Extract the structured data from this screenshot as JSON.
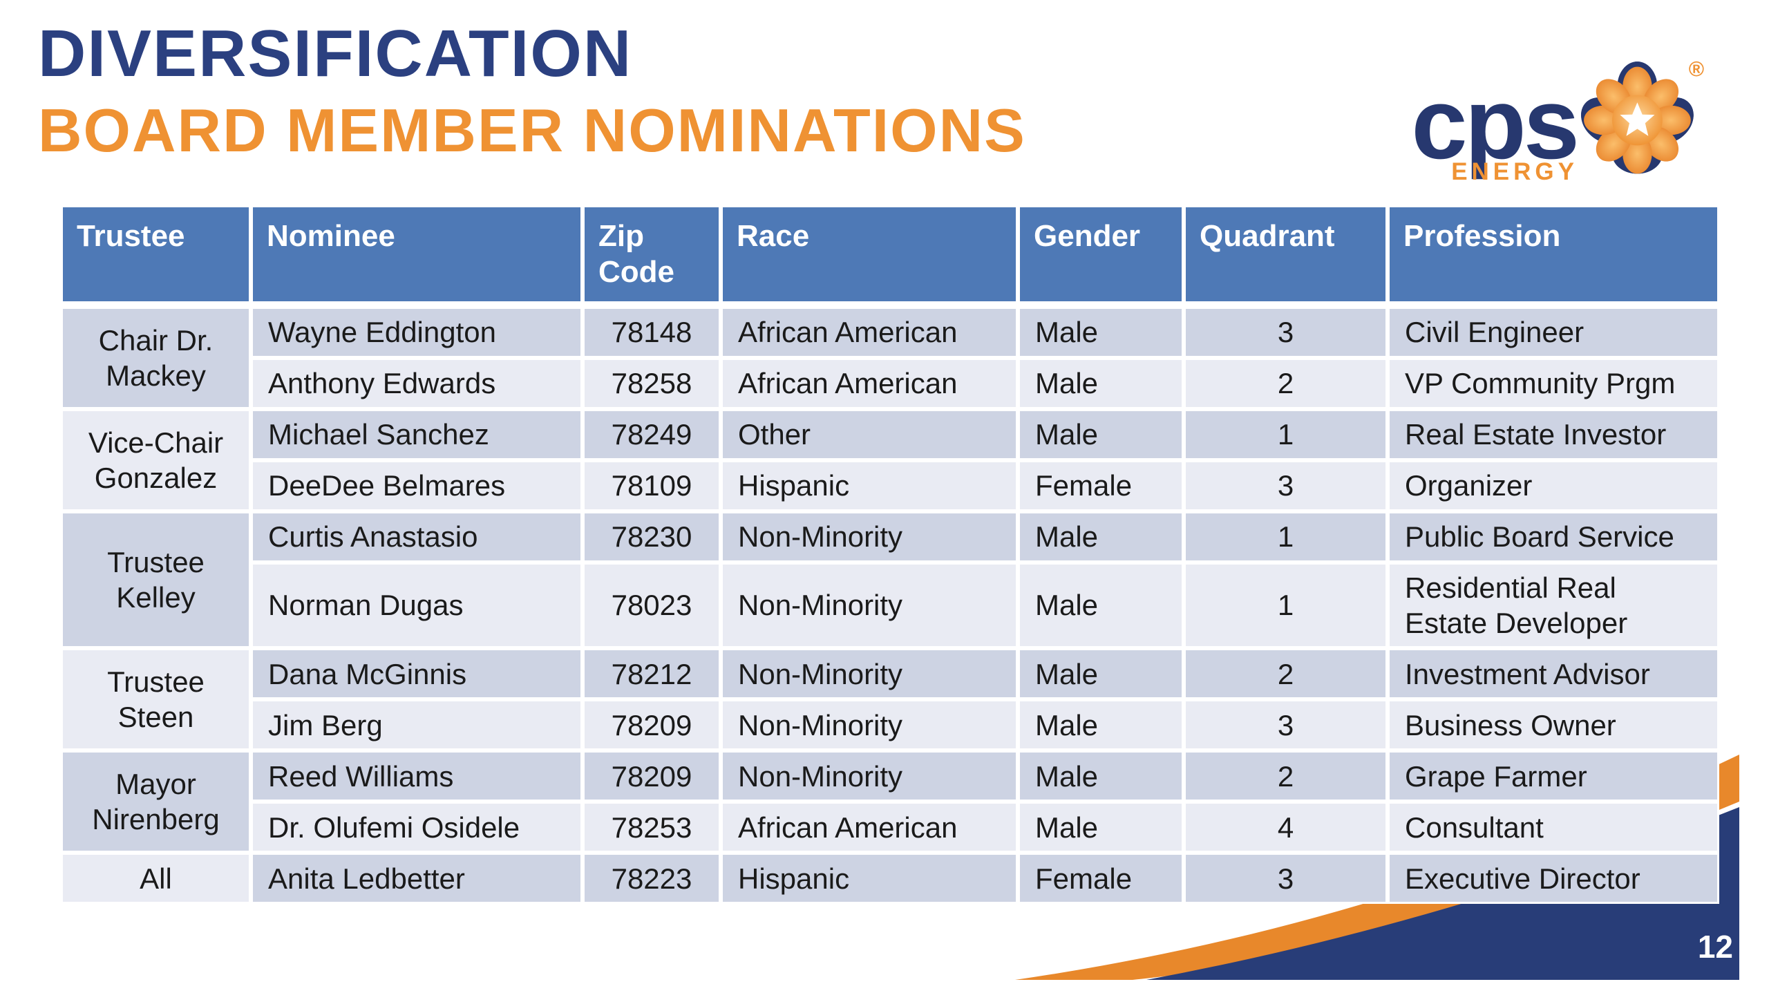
{
  "slide": {
    "title": "DIVERSIFICATION",
    "subtitle": "BOARD MEMBER NOMINATIONS",
    "page_number": "12"
  },
  "logo": {
    "brand": "cps",
    "sub_brand": "ENERGY",
    "registered_mark": "®"
  },
  "colors": {
    "navy": "#2B4080",
    "logo_navy": "#27386F",
    "orange": "#EF9233",
    "swoosh_orange": "#E8882B",
    "swoosh_navy": "#283D78",
    "header_blue": "#4E79B6",
    "row_dark": "#CDD3E3",
    "row_light": "#E9EBF3",
    "text_dark": "#1A1A1A"
  },
  "table": {
    "columns": [
      "Trustee",
      "Nominee",
      "Zip Code",
      "Race",
      "Gender",
      "Quadrant",
      "Profession"
    ],
    "groups": [
      {
        "trustee": "Chair Dr. Mackey",
        "nominees": [
          {
            "nominee": "Wayne Eddington",
            "zip": "78148",
            "race": "African American",
            "gender": "Male",
            "quadrant": "3",
            "profession": "Civil Engineer"
          },
          {
            "nominee": "Anthony Edwards",
            "zip": "78258",
            "race": "African American",
            "gender": "Male",
            "quadrant": "2",
            "profession": "VP Community Prgm"
          }
        ]
      },
      {
        "trustee": "Vice-Chair Gonzalez",
        "nominees": [
          {
            "nominee": "Michael Sanchez",
            "zip": "78249",
            "race": "Other",
            "gender": "Male",
            "quadrant": "1",
            "profession": "Real Estate Investor"
          },
          {
            "nominee": "DeeDee Belmares",
            "zip": "78109",
            "race": "Hispanic",
            "gender": "Female",
            "quadrant": "3",
            "profession": "Organizer"
          }
        ]
      },
      {
        "trustee": "Trustee Kelley",
        "nominees": [
          {
            "nominee": "Curtis Anastasio",
            "zip": "78230",
            "race": "Non-Minority",
            "gender": "Male",
            "quadrant": "1",
            "profession": "Public Board Service"
          },
          {
            "nominee": "Norman Dugas",
            "zip": "78023",
            "race": "Non-Minority",
            "gender": "Male",
            "quadrant": "1",
            "profession": "Residential Real Estate Developer"
          }
        ]
      },
      {
        "trustee": "Trustee Steen",
        "nominees": [
          {
            "nominee": "Dana McGinnis",
            "zip": "78212",
            "race": "Non-Minority",
            "gender": "Male",
            "quadrant": "2",
            "profession": "Investment Advisor"
          },
          {
            "nominee": "Jim Berg",
            "zip": "78209",
            "race": "Non-Minority",
            "gender": "Male",
            "quadrant": "3",
            "profession": "Business Owner"
          }
        ]
      },
      {
        "trustee": "Mayor Nirenberg",
        "nominees": [
          {
            "nominee": "Reed Williams",
            "zip": "78209",
            "race": "Non-Minority",
            "gender": "Male",
            "quadrant": "2",
            "profession": "Grape Farmer"
          },
          {
            "nominee": "Dr. Olufemi Osidele",
            "zip": "78253",
            "race": "African American",
            "gender": "Male",
            "quadrant": "4",
            "profession": "Consultant"
          }
        ]
      },
      {
        "trustee": "All",
        "nominees": [
          {
            "nominee": "Anita Ledbetter",
            "zip": "78223",
            "race": "Hispanic",
            "gender": "Female",
            "quadrant": "3",
            "profession": "Executive Director"
          }
        ]
      }
    ]
  }
}
